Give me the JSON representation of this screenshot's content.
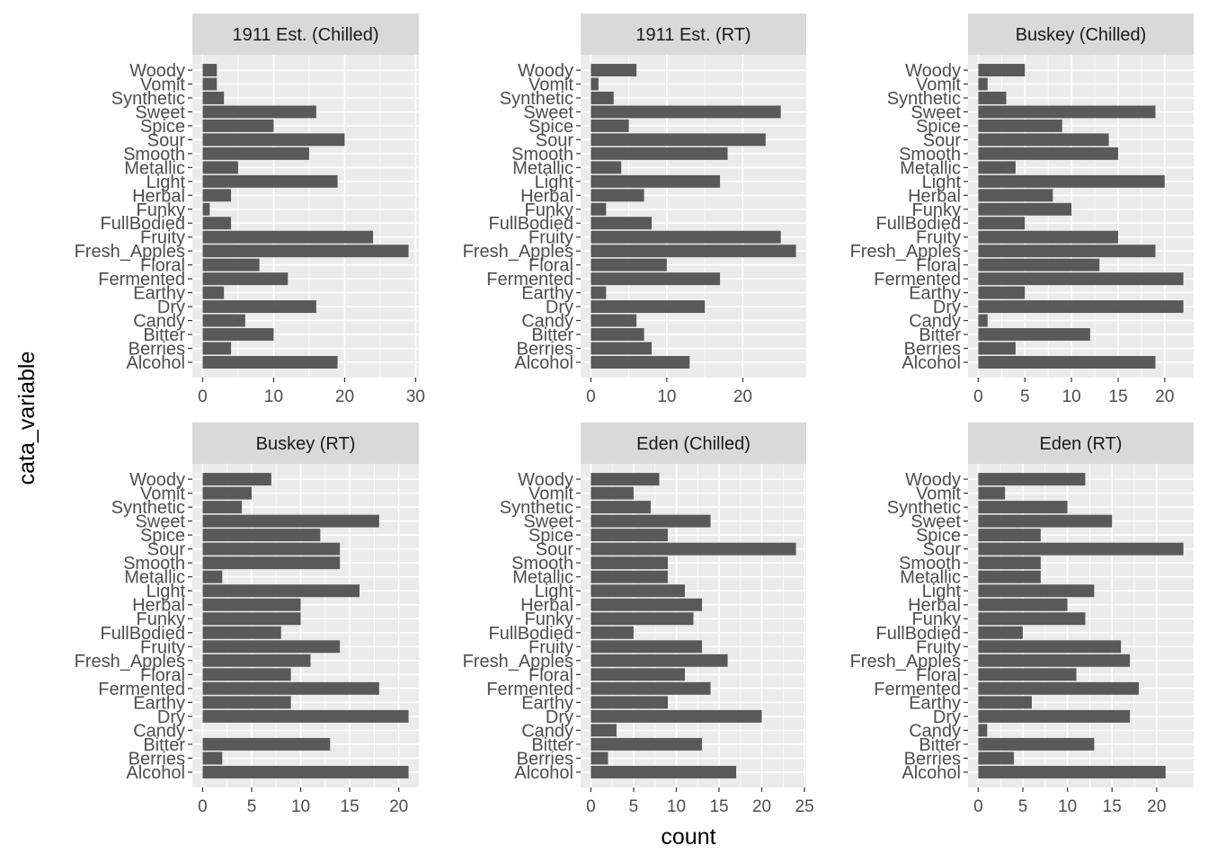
{
  "chart_data": {
    "type": "bar",
    "orientation": "horizontal",
    "xlabel": "count",
    "ylabel": "cata_variable",
    "grid": true,
    "categories": [
      "Alcohol",
      "Berries",
      "Bitter",
      "Candy",
      "Dry",
      "Earthy",
      "Fermented",
      "Floral",
      "Fresh_Apples",
      "Fruity",
      "FullBodied",
      "Funky",
      "Herbal",
      "Light",
      "Metallic",
      "Smooth",
      "Sour",
      "Spice",
      "Sweet",
      "Synthetic",
      "Vomit",
      "Woody"
    ],
    "panels": [
      {
        "title": "1911 Est. (Chilled)",
        "xlim": [
          -1.45,
          30.45
        ],
        "xticks": [
          0,
          10,
          20,
          30
        ],
        "values": [
          19,
          4,
          10,
          6,
          16,
          3,
          12,
          8,
          29,
          24,
          4,
          1,
          4,
          19,
          5,
          15,
          20,
          10,
          16,
          3,
          2,
          2
        ]
      },
      {
        "title": "1911 Est. (RT)",
        "xlim": [
          -1.35,
          28.35
        ],
        "xticks": [
          0,
          10,
          20
        ],
        "values": [
          13,
          8,
          7,
          6,
          15,
          2,
          17,
          10,
          27,
          25,
          8,
          2,
          7,
          17,
          4,
          18,
          23,
          5,
          25,
          3,
          1,
          6
        ]
      },
      {
        "title": "Buskey (Chilled)",
        "xlim": [
          -1.1,
          23.1
        ],
        "xticks": [
          0,
          5,
          10,
          15,
          20
        ],
        "values": [
          19,
          4,
          12,
          1,
          22,
          5,
          22,
          13,
          19,
          15,
          5,
          10,
          8,
          20,
          4,
          15,
          14,
          9,
          19,
          3,
          1,
          5
        ]
      },
      {
        "title": "Buskey (RT)",
        "xlim": [
          -1.05,
          22.05
        ],
        "xticks": [
          0,
          5,
          10,
          15,
          20
        ],
        "values": [
          21,
          2,
          13,
          0,
          21,
          9,
          18,
          9,
          11,
          14,
          8,
          10,
          10,
          16,
          2,
          14,
          14,
          12,
          18,
          4,
          5,
          7
        ]
      },
      {
        "title": "Eden (Chilled)",
        "xlim": [
          -1.2,
          25.2
        ],
        "xticks": [
          0,
          5,
          10,
          15,
          20,
          25
        ],
        "values": [
          17,
          2,
          13,
          3,
          20,
          9,
          14,
          11,
          16,
          13,
          5,
          12,
          13,
          11,
          9,
          9,
          24,
          9,
          14,
          7,
          5,
          8
        ]
      },
      {
        "title": "Eden (RT)",
        "xlim": [
          -1.15,
          24.15
        ],
        "xticks": [
          0,
          5,
          10,
          15,
          20
        ],
        "values": [
          21,
          4,
          13,
          1,
          17,
          6,
          18,
          11,
          17,
          16,
          5,
          12,
          10,
          13,
          7,
          7,
          23,
          7,
          15,
          10,
          3,
          12
        ]
      }
    ]
  },
  "colors": {
    "panel_background": "#EBEBEB",
    "strip_background": "#D9D9D9",
    "gridline": "#FFFFFF",
    "bar": "#595959",
    "tick_text": "#4D4D4D",
    "axis_title": "#000000"
  }
}
